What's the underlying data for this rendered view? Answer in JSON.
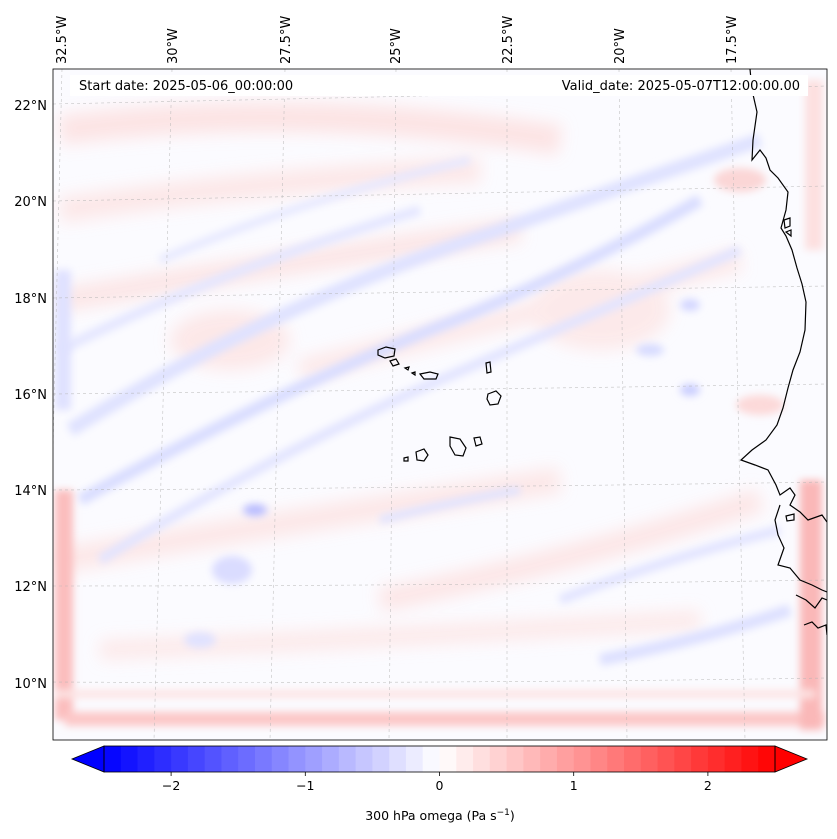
{
  "map": {
    "start_date_label": "Start date: 2025-05-06_00:00:00",
    "valid_date_label": "Valid_date: 2025-05-07T12:00:00.00",
    "longitude_ticks": [
      "32.5°W",
      "30°W",
      "27.5°W",
      "25°W",
      "22.5°W",
      "20°W",
      "17.5°W"
    ],
    "latitude_ticks": [
      "22°N",
      "20°N",
      "18°N",
      "16°N",
      "14°N",
      "12°N",
      "10°N"
    ],
    "gridlines": true,
    "coastline_color": "#000000",
    "field": "300 hPa omega"
  },
  "colorbar": {
    "label_main": "300 hPa omega (Pa s",
    "label_sup": "−1",
    "label_close": ")",
    "ticks": [
      {
        "value": -2,
        "label": "−2"
      },
      {
        "value": -1,
        "label": "−1"
      },
      {
        "value": 0,
        "label": "0"
      },
      {
        "value": 1,
        "label": "1"
      },
      {
        "value": 2,
        "label": "2"
      }
    ],
    "range": [
      -2.5,
      2.5
    ],
    "extend": "both",
    "cmap_low": "#0000ff",
    "cmap_mid": "#ffffff",
    "cmap_high": "#ff0000"
  }
}
